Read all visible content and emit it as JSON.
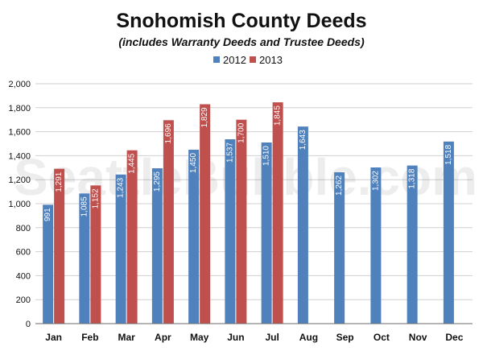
{
  "chart_data": {
    "type": "bar",
    "title": "Snohomish County Deeds",
    "subtitle": "(includes Warranty Deeds and Trustee Deeds)",
    "watermark": "SeattleBubble.com",
    "categories": [
      "Jan",
      "Feb",
      "Mar",
      "Apr",
      "May",
      "Jun",
      "Jul",
      "Aug",
      "Sep",
      "Oct",
      "Nov",
      "Dec"
    ],
    "series": [
      {
        "name": "2012",
        "color": "#4f81bd",
        "values": [
          991,
          1085,
          1243,
          1295,
          1450,
          1537,
          1510,
          1643,
          1262,
          1302,
          1318,
          1518
        ]
      },
      {
        "name": "2013",
        "color": "#c0504d",
        "values": [
          1291,
          1152,
          1445,
          1696,
          1829,
          1700,
          1845,
          null,
          null,
          null,
          null,
          null
        ]
      }
    ],
    "xlabel": "",
    "ylabel": "",
    "ylim": [
      0,
      2000
    ],
    "yticks": [
      0,
      200,
      400,
      600,
      800,
      1000,
      1200,
      1400,
      1600,
      1800,
      2000
    ],
    "grid": true,
    "legend_position": "top-center",
    "data_labels": true
  }
}
